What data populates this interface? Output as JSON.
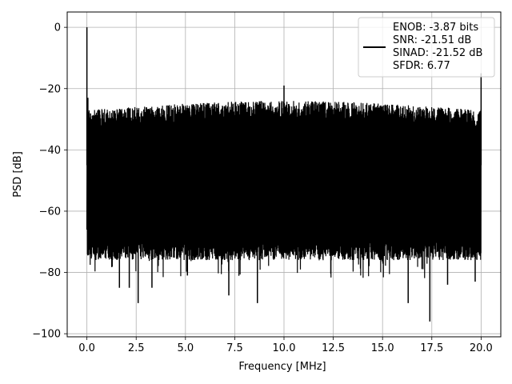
{
  "chart_data": {
    "type": "line",
    "title": "",
    "xlabel": "Frequency [MHz]",
    "ylabel": "PSD [dB]",
    "xlim": [
      -1.0,
      21.0
    ],
    "ylim": [
      -101,
      5
    ],
    "x_ticks": [
      0.0,
      2.5,
      5.0,
      7.5,
      10.0,
      12.5,
      15.0,
      17.5,
      20.0
    ],
    "x_tick_labels": [
      "0.0",
      "2.5",
      "5.0",
      "7.5",
      "10.0",
      "12.5",
      "15.0",
      "17.5",
      "20.0"
    ],
    "y_ticks": [
      0,
      -20,
      -40,
      -60,
      -80,
      -100
    ],
    "y_tick_labels": [
      "0",
      "−20",
      "−40",
      "−60",
      "−80",
      "−100"
    ],
    "grid": true,
    "legend_placement": "top-right",
    "series": [
      {
        "color": "#000000",
        "noise_band_db": [
          -70,
          -27
        ],
        "spikes": [
          {
            "x": 0.0,
            "y": 0.0
          },
          {
            "x": 0.05,
            "y": -23.0
          },
          {
            "x": 10.0,
            "y": -19.0
          },
          {
            "x": 20.0,
            "y": -15.0
          }
        ],
        "deep_nulls": [
          {
            "x": 1.65,
            "y": -85.0
          },
          {
            "x": 2.15,
            "y": -85.0
          },
          {
            "x": 2.6,
            "y": -90.0
          },
          {
            "x": 3.3,
            "y": -85.0
          },
          {
            "x": 5.1,
            "y": -81.0
          },
          {
            "x": 7.2,
            "y": -87.5
          },
          {
            "x": 8.65,
            "y": -90.0
          },
          {
            "x": 16.3,
            "y": -90.0
          },
          {
            "x": 17.4,
            "y": -96.0
          },
          {
            "x": 18.3,
            "y": -84.0
          },
          {
            "x": 19.7,
            "y": -83.0
          }
        ]
      }
    ],
    "legend_lines": [
      "ENOB: -3.87 bits",
      "SNR: -21.51 dB",
      "SINAD: -21.52 dB",
      "SFDR: 6.77"
    ]
  }
}
